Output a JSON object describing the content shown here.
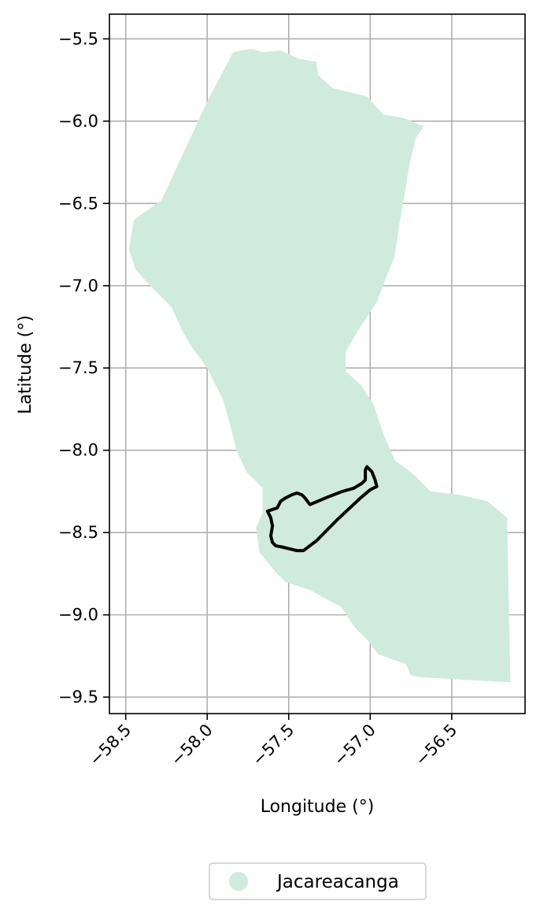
{
  "map": {
    "xlabel": "Longitude (°)",
    "ylabel": "Latitude (°)",
    "xlim": [
      -58.6,
      -56.05
    ],
    "ylim": [
      -9.6,
      -5.35
    ],
    "x_ticks": [
      -58.5,
      -58.0,
      -57.5,
      -57.0,
      -56.5
    ],
    "x_tick_labels": [
      "−58.5",
      "−58.0",
      "−57.5",
      "−57.0",
      "−56.5"
    ],
    "y_ticks": [
      -5.5,
      -6.0,
      -6.5,
      -7.0,
      -7.5,
      -8.0,
      -8.5,
      -9.0,
      -9.5
    ],
    "y_tick_labels": [
      "−5.5",
      "−6.0",
      "−6.5",
      "−7.0",
      "−7.5",
      "−8.0",
      "−8.5",
      "−9.0",
      "−9.5"
    ],
    "grid": true,
    "colors": {
      "fill": "#cfebdd",
      "outline": "#000000",
      "grid": "#b0b0b0"
    },
    "legend": {
      "position": "bottom-center",
      "entries": [
        "Jacareacanga"
      ]
    },
    "region": {
      "name": "Jacareacanga",
      "polygon": [
        [
          -57.84,
          -5.58
        ],
        [
          -57.73,
          -5.56
        ],
        [
          -57.66,
          -5.58
        ],
        [
          -57.55,
          -5.57
        ],
        [
          -57.44,
          -5.62
        ],
        [
          -57.33,
          -5.64
        ],
        [
          -57.32,
          -5.72
        ],
        [
          -57.23,
          -5.8
        ],
        [
          -57.02,
          -5.85
        ],
        [
          -56.92,
          -5.96
        ],
        [
          -56.8,
          -5.98
        ],
        [
          -56.67,
          -6.03
        ],
        [
          -56.72,
          -6.1
        ],
        [
          -56.76,
          -6.27
        ],
        [
          -56.79,
          -6.45
        ],
        [
          -56.82,
          -6.62
        ],
        [
          -56.85,
          -6.82
        ],
        [
          -56.91,
          -6.97
        ],
        [
          -56.96,
          -7.1
        ],
        [
          -57.06,
          -7.25
        ],
        [
          -57.15,
          -7.4
        ],
        [
          -57.15,
          -7.52
        ],
        [
          -57.06,
          -7.6
        ],
        [
          -56.98,
          -7.72
        ],
        [
          -56.92,
          -7.9
        ],
        [
          -56.85,
          -8.06
        ],
        [
          -56.73,
          -8.15
        ],
        [
          -56.63,
          -8.25
        ],
        [
          -56.45,
          -8.27
        ],
        [
          -56.28,
          -8.31
        ],
        [
          -56.16,
          -8.41
        ],
        [
          -56.14,
          -9.41
        ],
        [
          -56.68,
          -9.38
        ],
        [
          -56.75,
          -9.37
        ],
        [
          -56.78,
          -9.3
        ],
        [
          -56.95,
          -9.24
        ],
        [
          -57.02,
          -9.15
        ],
        [
          -57.1,
          -9.07
        ],
        [
          -57.18,
          -8.95
        ],
        [
          -57.37,
          -8.85
        ],
        [
          -57.52,
          -8.8
        ],
        [
          -57.58,
          -8.74
        ],
        [
          -57.68,
          -8.62
        ],
        [
          -57.7,
          -8.47
        ],
        [
          -57.66,
          -8.38
        ],
        [
          -57.66,
          -8.23
        ],
        [
          -57.76,
          -8.13
        ],
        [
          -57.82,
          -8.0
        ],
        [
          -57.85,
          -7.88
        ],
        [
          -57.9,
          -7.7
        ],
        [
          -58.0,
          -7.5
        ],
        [
          -58.09,
          -7.38
        ],
        [
          -58.15,
          -7.28
        ],
        [
          -58.22,
          -7.13
        ],
        [
          -58.35,
          -7.0
        ],
        [
          -58.44,
          -6.9
        ],
        [
          -58.48,
          -6.78
        ],
        [
          -58.45,
          -6.6
        ],
        [
          -58.38,
          -6.55
        ],
        [
          -58.28,
          -6.48
        ],
        [
          -58.0,
          -5.88
        ]
      ]
    },
    "outline": [
      [
        -57.63,
        -8.37
      ],
      [
        -57.57,
        -8.35
      ],
      [
        -57.55,
        -8.31
      ],
      [
        -57.52,
        -8.29
      ],
      [
        -57.48,
        -8.27
      ],
      [
        -57.45,
        -8.26
      ],
      [
        -57.42,
        -8.27
      ],
      [
        -57.4,
        -8.29
      ],
      [
        -57.37,
        -8.33
      ],
      [
        -57.25,
        -8.28
      ],
      [
        -57.17,
        -8.25
      ],
      [
        -57.1,
        -8.23
      ],
      [
        -57.05,
        -8.2
      ],
      [
        -57.03,
        -8.18
      ],
      [
        -57.03,
        -8.12
      ],
      [
        -57.02,
        -8.1
      ],
      [
        -56.99,
        -8.13
      ],
      [
        -56.97,
        -8.18
      ],
      [
        -56.96,
        -8.22
      ],
      [
        -57.0,
        -8.24
      ],
      [
        -57.06,
        -8.29
      ],
      [
        -57.2,
        -8.42
      ],
      [
        -57.33,
        -8.55
      ],
      [
        -57.41,
        -8.61
      ],
      [
        -57.45,
        -8.61
      ],
      [
        -57.49,
        -8.6
      ],
      [
        -57.53,
        -8.59
      ],
      [
        -57.58,
        -8.58
      ],
      [
        -57.6,
        -8.56
      ],
      [
        -57.61,
        -8.52
      ],
      [
        -57.6,
        -8.46
      ],
      [
        -57.61,
        -8.41
      ]
    ]
  }
}
